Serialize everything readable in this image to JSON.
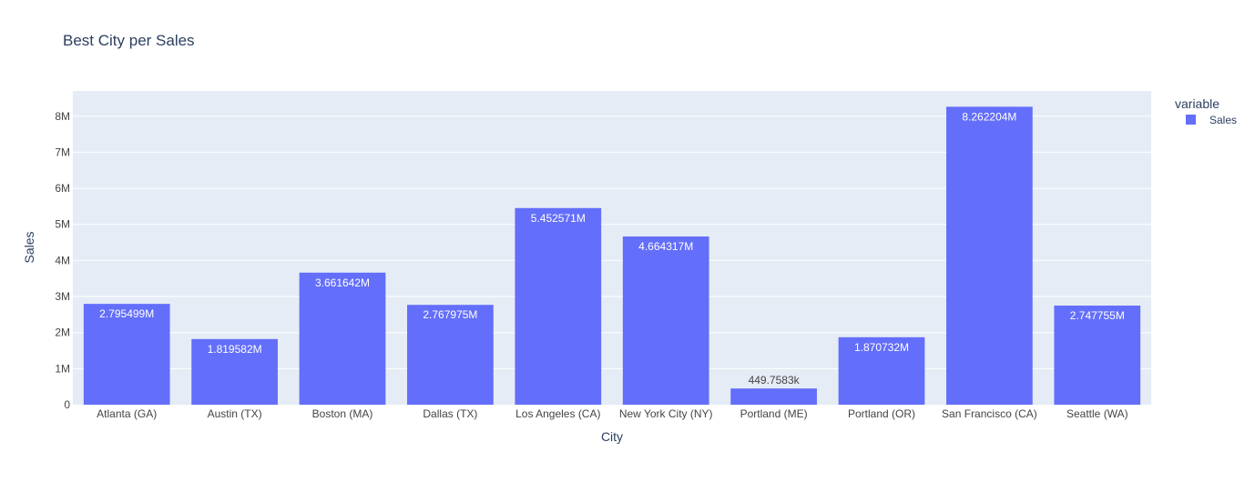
{
  "chart_data": {
    "type": "bar",
    "title": "Best City per Sales",
    "xlabel": "City",
    "ylabel": "Sales",
    "ylim": [
      0,
      8700000
    ],
    "yticks": [
      0,
      1000000,
      2000000,
      3000000,
      4000000,
      5000000,
      6000000,
      7000000,
      8000000
    ],
    "ytick_labels": [
      "0",
      "1M",
      "2M",
      "3M",
      "4M",
      "5M",
      "6M",
      "7M",
      "8M"
    ],
    "grid": true,
    "legend": {
      "title": "variable",
      "position": "top-right"
    },
    "categories": [
      "Atlanta (GA)",
      "Austin (TX)",
      "Boston (MA)",
      "Dallas (TX)",
      "Los Angeles (CA)",
      "New York City (NY)",
      "Portland (ME)",
      "Portland (OR)",
      "San Francisco (CA)",
      "Seattle (WA)"
    ],
    "series": [
      {
        "name": "Sales",
        "color": "#636efa",
        "values": [
          2795499,
          1819582,
          3661642,
          2767975,
          5452571,
          4664317,
          449758.3,
          1870732,
          8262204,
          2747755
        ],
        "labels": [
          "2.795499M",
          "1.819582M",
          "3.661642M",
          "2.767975M",
          "5.452571M",
          "4.664317M",
          "449.7583k",
          "1.870732M",
          "8.262204M",
          "2.747755M"
        ]
      }
    ],
    "colors": {
      "plot_bg": "#e5ecf6",
      "grid": "#ffffff",
      "text": "#2a3f5f",
      "tick": "#444444"
    }
  }
}
